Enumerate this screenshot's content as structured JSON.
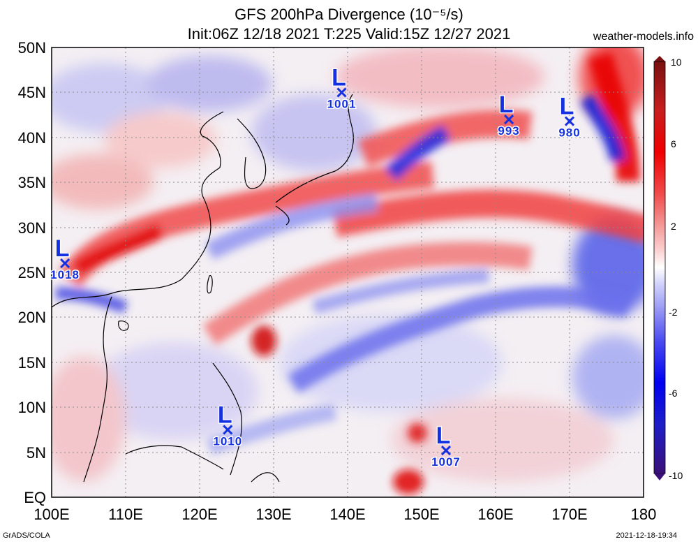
{
  "header": {
    "title_line1": "GFS 200hPa Divergence (10⁻⁵/s)",
    "title_line2": "Init:06Z 12/18 2021 T:225 Valid:15Z 12/27 2021",
    "site": "weather-models.info"
  },
  "footer": {
    "left": "GrADS/COLA",
    "right": "2021-12-18-19:34"
  },
  "map": {
    "lat_labels": [
      "50N",
      "45N",
      "40N",
      "35N",
      "30N",
      "25N",
      "20N",
      "15N",
      "10N",
      "5N",
      "EQ"
    ],
    "lon_labels": [
      "100E",
      "110E",
      "120E",
      "130E",
      "140E",
      "150E",
      "160E",
      "170E",
      "180"
    ],
    "lows": [
      {
        "symbol": "L",
        "pressure": "1001",
        "lon": 139.2,
        "lat": 45.0
      },
      {
        "symbol": "L",
        "pressure": "993",
        "lon": 161.8,
        "lat": 42.0
      },
      {
        "symbol": "L",
        "pressure": "980",
        "lon": 170.0,
        "lat": 41.8
      },
      {
        "symbol": "L",
        "pressure": "1018",
        "lon": 101.8,
        "lat": 26.0
      },
      {
        "symbol": "L",
        "pressure": "1010",
        "lon": 123.8,
        "lat": 7.5
      },
      {
        "symbol": "L",
        "pressure": "1007",
        "lon": 153.3,
        "lat": 5.2
      }
    ]
  },
  "colorbar": {
    "labels": [
      "10",
      "6",
      "2",
      "-2",
      "-6",
      "-10"
    ],
    "colors": [
      "#7a1010",
      "#c81e1e",
      "#f00000",
      "#f04a4a",
      "#f59a9a",
      "#fbd2d2",
      "#ffffff",
      "#d2d2fb",
      "#9a9af5",
      "#4a4af0",
      "#0000f0",
      "#1e1ec8",
      "#3a1078"
    ]
  }
}
